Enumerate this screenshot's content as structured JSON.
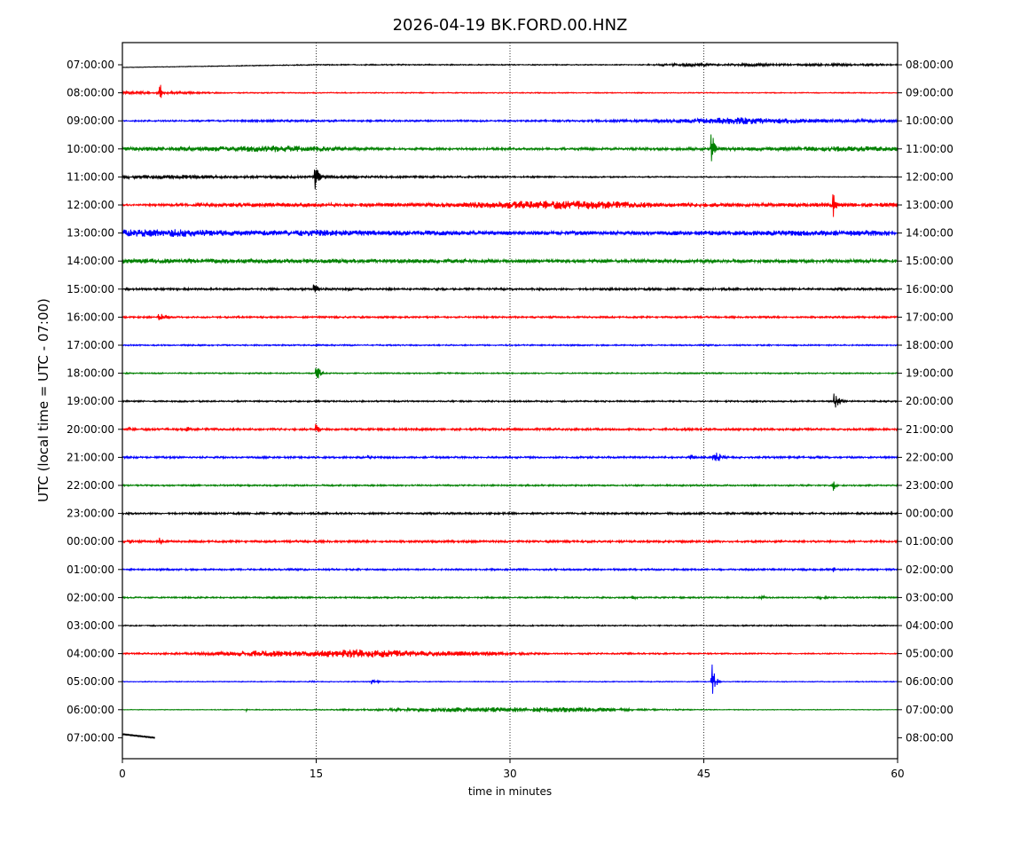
{
  "chart_data": {
    "type": "line",
    "title": "2026-04-19 BK.FORD.00.HNZ",
    "xlabel": "time in minutes",
    "ylabel": "UTC (local time = UTC - 07:00)",
    "xlim": [
      0,
      60
    ],
    "x_ticks": [
      "0",
      "15",
      "30",
      "45",
      "60"
    ],
    "x_tick_values": [
      0,
      15,
      30,
      45,
      60
    ],
    "vertical_gridlines": [
      15,
      30,
      45
    ],
    "grid_style": "dotted",
    "colors": [
      "#000000",
      "#ff0000",
      "#0000ff",
      "#008000"
    ],
    "left_labels": [
      "07:00:00",
      "08:00:00",
      "09:00:00",
      "10:00:00",
      "11:00:00",
      "12:00:00",
      "13:00:00",
      "14:00:00",
      "15:00:00",
      "16:00:00",
      "17:00:00",
      "18:00:00",
      "19:00:00",
      "20:00:00",
      "21:00:00",
      "22:00:00",
      "23:00:00",
      "00:00:00",
      "01:00:00",
      "02:00:00",
      "03:00:00",
      "04:00:00",
      "05:00:00",
      "06:00:00",
      "07:00:00"
    ],
    "right_labels": [
      "08:00:00",
      "09:00:00",
      "10:00:00",
      "11:00:00",
      "12:00:00",
      "13:00:00",
      "14:00:00",
      "15:00:00",
      "16:00:00",
      "17:00:00",
      "18:00:00",
      "19:00:00",
      "20:00:00",
      "21:00:00",
      "22:00:00",
      "23:00:00",
      "00:00:00",
      "01:00:00",
      "02:00:00",
      "03:00:00",
      "04:00:00",
      "05:00:00",
      "06:00:00",
      "07:00:00",
      "08:00:00"
    ],
    "rows": [
      {
        "start_min": 0,
        "end_min": 60,
        "base": 0.6,
        "envelope": [
          [
            0,
            0.3
          ],
          [
            20,
            0.7
          ],
          [
            40,
            0.5
          ],
          [
            44,
            2.2
          ],
          [
            46,
            1.0
          ],
          [
            49,
            1.8
          ],
          [
            52,
            1.0
          ],
          [
            55,
            1.4
          ],
          [
            60,
            1.0
          ]
        ]
      },
      {
        "start_min": 0,
        "end_min": 60,
        "base": 0.8,
        "envelope": [
          [
            0,
            1.8
          ],
          [
            4,
            1.6
          ],
          [
            8,
            0.6
          ],
          [
            60,
            0.5
          ]
        ]
      },
      {
        "start_min": 0,
        "end_min": 60,
        "base": 0.8,
        "envelope": [
          [
            0,
            0.8
          ],
          [
            12,
            1.2
          ],
          [
            30,
            0.9
          ],
          [
            40,
            1.5
          ],
          [
            48,
            4.0
          ],
          [
            55,
            1.8
          ],
          [
            60,
            1.8
          ]
        ]
      },
      {
        "start_min": 0,
        "end_min": 60,
        "base": 1.0,
        "envelope": [
          [
            0,
            2.0
          ],
          [
            8,
            3.0
          ],
          [
            12,
            4.0
          ],
          [
            15,
            3.0
          ],
          [
            20,
            1.2
          ],
          [
            40,
            1.4
          ],
          [
            50,
            2.0
          ],
          [
            56,
            3.0
          ],
          [
            60,
            2.5
          ]
        ]
      },
      {
        "start_min": 0,
        "end_min": 60,
        "base": 0.8,
        "envelope": [
          [
            0,
            2.0
          ],
          [
            5,
            2.5
          ],
          [
            8,
            1.5
          ],
          [
            30,
            1.0
          ],
          [
            45,
            0.6
          ],
          [
            60,
            0.5
          ]
        ]
      },
      {
        "start_min": 0,
        "end_min": 60,
        "base": 1.0,
        "envelope": [
          [
            0,
            0.8
          ],
          [
            10,
            2.5
          ],
          [
            20,
            2.0
          ],
          [
            25,
            2.5
          ],
          [
            32,
            5.0
          ],
          [
            37,
            4.5
          ],
          [
            42,
            2.5
          ],
          [
            50,
            2.0
          ],
          [
            60,
            2.5
          ]
        ]
      },
      {
        "start_min": 0,
        "end_min": 60,
        "base": 1.2,
        "envelope": [
          [
            0,
            4.0
          ],
          [
            4,
            4.5
          ],
          [
            8,
            3.0
          ],
          [
            15,
            3.5
          ],
          [
            20,
            3.0
          ],
          [
            30,
            2.2
          ],
          [
            45,
            2.5
          ],
          [
            55,
            3.5
          ],
          [
            60,
            3.0
          ]
        ]
      },
      {
        "start_min": 0,
        "end_min": 60,
        "base": 1.0,
        "envelope": [
          [
            0,
            3.0
          ],
          [
            10,
            2.5
          ],
          [
            20,
            2.2
          ],
          [
            40,
            1.8
          ],
          [
            60,
            2.0
          ]
        ]
      },
      {
        "start_min": 0,
        "end_min": 60,
        "base": 1.2,
        "envelope": [
          [
            0,
            1.2
          ],
          [
            60,
            1.2
          ]
        ]
      },
      {
        "start_min": 0,
        "end_min": 60,
        "base": 1.0,
        "envelope": [
          [
            0,
            1.0
          ],
          [
            60,
            1.0
          ]
        ]
      },
      {
        "start_min": 0,
        "end_min": 60,
        "base": 0.8,
        "envelope": [
          [
            0,
            0.8
          ],
          [
            60,
            0.8
          ]
        ]
      },
      {
        "start_min": 0,
        "end_min": 60,
        "base": 0.7,
        "envelope": [
          [
            0,
            0.7
          ],
          [
            60,
            0.7
          ]
        ]
      },
      {
        "start_min": 0,
        "end_min": 60,
        "base": 0.9,
        "envelope": [
          [
            0,
            0.9
          ],
          [
            60,
            0.9
          ]
        ]
      },
      {
        "start_min": 0,
        "end_min": 60,
        "base": 1.2,
        "envelope": [
          [
            0,
            1.2
          ],
          [
            60,
            1.2
          ]
        ]
      },
      {
        "start_min": 0,
        "end_min": 60,
        "base": 1.1,
        "envelope": [
          [
            0,
            1.1
          ],
          [
            60,
            1.1
          ]
        ]
      },
      {
        "start_min": 0,
        "end_min": 60,
        "base": 0.9,
        "envelope": [
          [
            0,
            0.9
          ],
          [
            60,
            0.9
          ]
        ]
      },
      {
        "start_min": 0,
        "end_min": 60,
        "base": 1.1,
        "envelope": [
          [
            0,
            1.1
          ],
          [
            60,
            1.1
          ]
        ]
      },
      {
        "start_min": 0,
        "end_min": 60,
        "base": 1.2,
        "envelope": [
          [
            0,
            1.2
          ],
          [
            60,
            1.2
          ]
        ]
      },
      {
        "start_min": 0,
        "end_min": 60,
        "base": 1.0,
        "envelope": [
          [
            0,
            1.0
          ],
          [
            60,
            1.0
          ]
        ]
      },
      {
        "start_min": 0,
        "end_min": 60,
        "base": 0.9,
        "envelope": [
          [
            0,
            0.9
          ],
          [
            60,
            0.9
          ]
        ]
      },
      {
        "start_min": 0,
        "end_min": 60,
        "base": 0.7,
        "envelope": [
          [
            0,
            0.7
          ],
          [
            60,
            0.7
          ]
        ]
      },
      {
        "start_min": 0,
        "end_min": 60,
        "base": 0.8,
        "envelope": [
          [
            0,
            0.8
          ],
          [
            5,
            1.2
          ],
          [
            10,
            3.5
          ],
          [
            14,
            3.0
          ],
          [
            18,
            5.0
          ],
          [
            22,
            3.5
          ],
          [
            28,
            2.5
          ],
          [
            32,
            1.0
          ],
          [
            60,
            0.6
          ]
        ]
      },
      {
        "start_min": 0,
        "end_min": 60,
        "base": 0.5,
        "envelope": [
          [
            0,
            0.5
          ],
          [
            60,
            0.5
          ]
        ]
      },
      {
        "start_min": 0,
        "end_min": 60,
        "base": 0.4,
        "envelope": [
          [
            0,
            0.3
          ],
          [
            15,
            0.6
          ],
          [
            20,
            1.2
          ],
          [
            25,
            2.5
          ],
          [
            32,
            3.0
          ],
          [
            36,
            2.5
          ],
          [
            40,
            1.0
          ],
          [
            45,
            0.5
          ],
          [
            60,
            0.3
          ]
        ]
      },
      {
        "start_min": 0,
        "end_min": 2.5,
        "base": 0.3,
        "envelope": [
          [
            0,
            0.2
          ],
          [
            2.5,
            0.2
          ]
        ],
        "drift": true
      }
    ],
    "events": [
      {
        "row": 4,
        "time_min": 14.9,
        "amp": 18,
        "duration_min": 0.8
      },
      {
        "row": 8,
        "time_min": 14.8,
        "amp": 8,
        "duration_min": 1.0
      },
      {
        "row": 11,
        "time_min": 15.0,
        "amp": 12,
        "duration_min": 0.8
      },
      {
        "row": 13,
        "time_min": 15.0,
        "amp": 8,
        "duration_min": 0.6
      },
      {
        "row": 1,
        "time_min": 2.9,
        "amp": 16,
        "duration_min": 0.3
      },
      {
        "row": 9,
        "time_min": 2.8,
        "amp": 8,
        "duration_min": 1.5
      },
      {
        "row": 17,
        "time_min": 2.9,
        "amp": 11,
        "duration_min": 0.4
      },
      {
        "row": 3,
        "time_min": 45.6,
        "amp": 24,
        "duration_min": 0.6
      },
      {
        "row": 14,
        "time_min": 45.7,
        "amp": 10,
        "duration_min": 1.8
      },
      {
        "row": 22,
        "time_min": 45.6,
        "amp": 26,
        "duration_min": 0.7
      },
      {
        "row": 5,
        "time_min": 55.0,
        "amp": 16,
        "duration_min": 0.6
      },
      {
        "row": 12,
        "time_min": 55.1,
        "amp": 10,
        "duration_min": 1.2
      },
      {
        "row": 15,
        "time_min": 55.0,
        "amp": 8,
        "duration_min": 0.6
      },
      {
        "row": 18,
        "time_min": 55.0,
        "amp": 6,
        "duration_min": 0.4
      },
      {
        "row": 13,
        "time_min": 5.0,
        "amp": 4,
        "duration_min": 1.0
      },
      {
        "row": 13,
        "time_min": 0.5,
        "amp": 4,
        "duration_min": 1.0
      },
      {
        "row": 14,
        "time_min": 19.0,
        "amp": 3,
        "duration_min": 1.0
      },
      {
        "row": 14,
        "time_min": 24.0,
        "amp": 2.5,
        "duration_min": 2.0
      },
      {
        "row": 14,
        "time_min": 44.0,
        "amp": 4,
        "duration_min": 1.0
      },
      {
        "row": 19,
        "time_min": 39.5,
        "amp": 3,
        "duration_min": 1.5
      },
      {
        "row": 19,
        "time_min": 49.5,
        "amp": 2.5,
        "duration_min": 1.5
      },
      {
        "row": 19,
        "time_min": 54.0,
        "amp": 2.5,
        "duration_min": 2.0
      },
      {
        "row": 22,
        "time_min": 14.5,
        "amp": 2,
        "duration_min": 1.5
      },
      {
        "row": 22,
        "time_min": 19.3,
        "amp": 3,
        "duration_min": 1.5
      },
      {
        "row": 8,
        "time_min": 17.5,
        "amp": 3,
        "duration_min": 1.0
      },
      {
        "row": 9,
        "time_min": 28.0,
        "amp": 2.5,
        "duration_min": 1.5
      },
      {
        "row": 17,
        "time_min": 35.5,
        "amp": 3,
        "duration_min": 0.4
      },
      {
        "row": 23,
        "time_min": 9.6,
        "amp": 2,
        "duration_min": 0.2
      },
      {
        "row": 16,
        "time_min": 59.5,
        "amp": 3,
        "duration_min": 1.0
      },
      {
        "row": 17,
        "time_min": 0.5,
        "amp": 4,
        "duration_min": 1.0
      }
    ]
  }
}
